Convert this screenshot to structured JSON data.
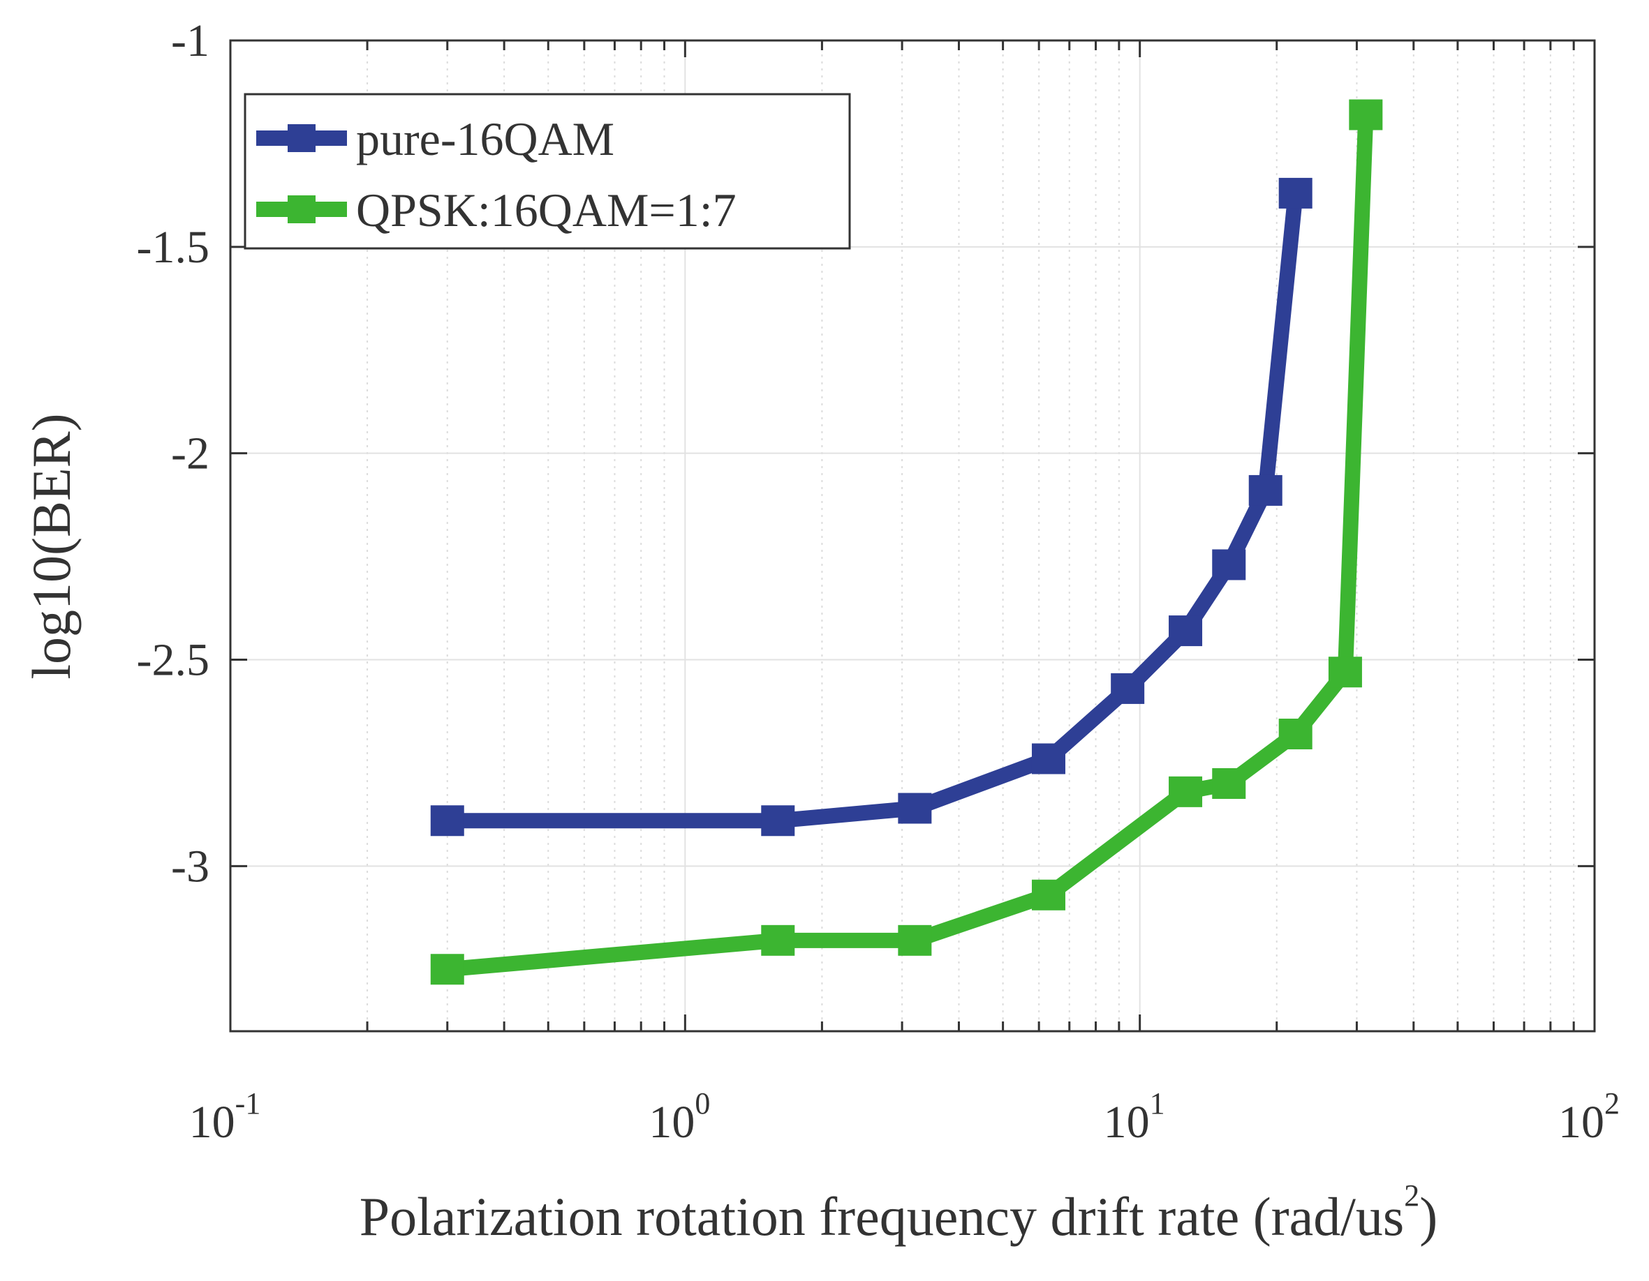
{
  "chart_data": {
    "type": "line",
    "xscale": "log",
    "xlim": [
      0.1,
      100
    ],
    "ylim": [
      -3.4,
      -1
    ],
    "grid": true,
    "legend_position": "top-left",
    "xlabel": "Polarization rotation frequency drift rate (rad/us",
    "xlabel_superscript": "2",
    "xlabel_close": ")",
    "ylabel": "log10(BER)",
    "x_ticks": [
      {
        "value": 0.1,
        "base": "10",
        "exp": "-1"
      },
      {
        "value": 1,
        "base": "10",
        "exp": "0"
      },
      {
        "value": 10,
        "base": "10",
        "exp": "1"
      },
      {
        "value": 100,
        "base": "10",
        "exp": "2"
      }
    ],
    "y_ticks": [
      {
        "value": -1,
        "label": "-1"
      },
      {
        "value": -1.5,
        "label": "-1.5"
      },
      {
        "value": -2,
        "label": "-2"
      },
      {
        "value": -2.5,
        "label": "-2.5"
      },
      {
        "value": -3,
        "label": "-3"
      }
    ],
    "series": [
      {
        "name": "pure-16QAM",
        "color": "#2e3f95",
        "marker": "square",
        "x": [
          0.3,
          1.6,
          3.2,
          6.3,
          9.4,
          12.6,
          15.7,
          18.9,
          22
        ],
        "y": [
          -2.89,
          -2.89,
          -2.86,
          -2.74,
          -2.57,
          -2.43,
          -2.27,
          -2.09,
          -1.37
        ]
      },
      {
        "name": "QPSK:16QAM=1:7",
        "color": "#3cb531",
        "marker": "square",
        "x": [
          0.3,
          1.6,
          3.2,
          6.3,
          12.6,
          15.7,
          22,
          28.3,
          31.4
        ],
        "y": [
          -3.25,
          -3.18,
          -3.18,
          -3.07,
          -2.82,
          -2.8,
          -2.68,
          -2.53,
          -1.18
        ]
      }
    ]
  }
}
